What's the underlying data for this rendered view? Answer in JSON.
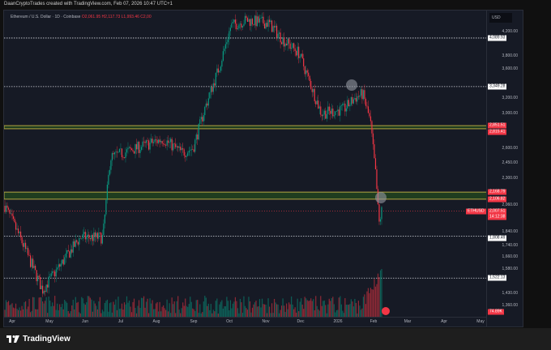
{
  "credit": "DaanCryptoTrades created with TradingView.com, Feb 07, 2026 10:47 UTC+1",
  "legend": {
    "symbol": "Ethereum / U.S. Dollar · 1D · Coinbase",
    "ohlc": "O2,061.95 H2,117.73 L1,993.46 C2,00"
  },
  "currency": "USD",
  "brand": "TradingView",
  "colors": {
    "up": "#089981",
    "down": "#f23645",
    "zone": "#b5a642",
    "zoneFill": "#1f3d1f"
  },
  "chart_data": {
    "type": "candlestick",
    "title": "Ethereum / U.S. Dollar · 1D · Coinbase",
    "y_scale": "log",
    "ylim": [
      1330,
      4450
    ],
    "y_ticks": [
      "4,200.00",
      "3,800.00",
      "3,600.00",
      "3,200.00",
      "3,000.00",
      "2,600.00",
      "2,450.00",
      "2,300.00",
      "2,060.00",
      "1,840.00",
      "1,740.00",
      "1,660.00",
      "1,580.00",
      "1,430.00",
      "1,360.00"
    ],
    "y_tick_values": [
      4200,
      3800,
      3600,
      3200,
      3000,
      2600,
      2450,
      2300,
      2060,
      1840,
      1740,
      1660,
      1580,
      1430,
      1360
    ],
    "x_ticks": [
      "Apr",
      "May",
      "Jun",
      "Jul",
      "Aug",
      "Sep",
      "Oct",
      "Nov",
      "Dec",
      "2026",
      "Feb",
      "Mar",
      "Apr",
      "May",
      "Jun"
    ],
    "levels": [
      {
        "price": 4089.93,
        "label": "4,089.93",
        "style": "white"
      },
      {
        "price": 3349.28,
        "label": "3,349.28",
        "style": "white"
      },
      {
        "price": 1808.49,
        "label": "1,808.49",
        "style": "white"
      },
      {
        "price": 1522.13,
        "label": "1,522.13",
        "style": "white"
      }
    ],
    "zones": [
      {
        "top": 2851.51,
        "bottom": 2815.41,
        "top_label": "2,851.51",
        "bottom_label": "2,815.41"
      },
      {
        "top": 2168.79,
        "bottom": 2106.82,
        "top_label": "2,168.79",
        "bottom_label": "2,106.82"
      }
    ],
    "last_price": {
      "symbol": "ETHUSD",
      "price": 2007.51,
      "label": "2,007.51",
      "countdown": "14:12:38"
    },
    "volume_label": "74.89K",
    "close_path_months": [
      0,
      0.04,
      0.1,
      0.2,
      0.26,
      0.28,
      0.35,
      0.42,
      0.47,
      0.5,
      0.53,
      0.57,
      0.6,
      0.64,
      0.7,
      0.74,
      0.78,
      0.84,
      0.9,
      0.93,
      0.95,
      0.97,
      0.985,
      0.993,
      1
    ],
    "close_path_prices": [
      2050,
      1800,
      1450,
      1800,
      1800,
      2500,
      2600,
      2700,
      2550,
      2600,
      3050,
      3650,
      4300,
      4400,
      4350,
      4050,
      3850,
      3000,
      3050,
      3200,
      3250,
      2900,
      2300,
      1900,
      2008
    ]
  }
}
